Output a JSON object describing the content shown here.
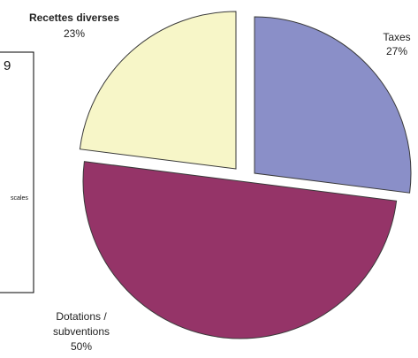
{
  "chart_data": {
    "type": "pie",
    "exploded": true,
    "slices": [
      {
        "name": "Taxes",
        "label_lines": [
          "Taxes",
          "27%"
        ],
        "value": 27,
        "color": "#8a8fc8"
      },
      {
        "name": "Dotations / subventions",
        "label_lines": [
          "Dotations /",
          "subventions",
          "50%"
        ],
        "value": 50,
        "color": "#953468"
      },
      {
        "name": "Recettes diverses",
        "label_lines": [
          "Recettes diverses",
          "23%"
        ],
        "value": 23,
        "color": "#f7f6c8"
      }
    ]
  },
  "side_panel": {
    "top_text": "9",
    "mid_text": "scales"
  }
}
